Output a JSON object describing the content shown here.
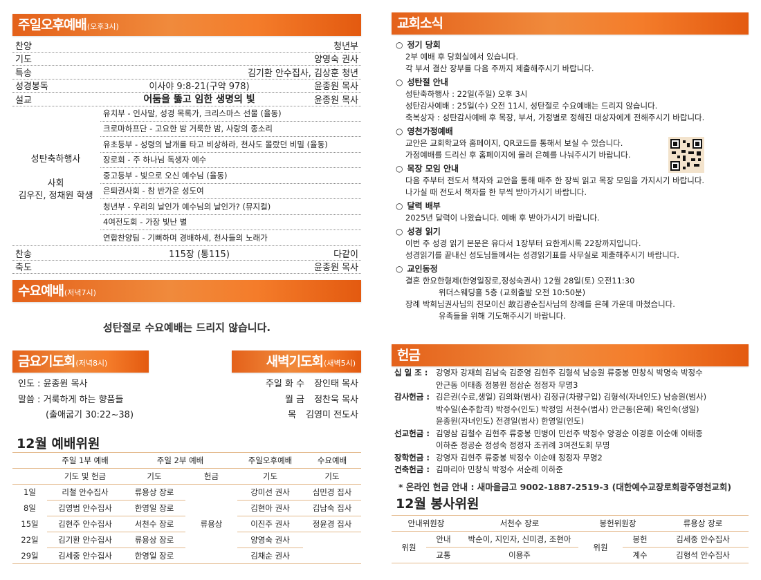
{
  "sunday_pm": {
    "title": "주일오후예배",
    "time": "(오후3시)",
    "rows": [
      {
        "label": "찬양",
        "center": "",
        "right": "청년부"
      },
      {
        "label": "기도",
        "center": "",
        "right": "양영숙 권사"
      },
      {
        "label": "특송",
        "center": "",
        "right": "김기환 안수집사, 김상훈 청년"
      },
      {
        "label": "성경봉독",
        "center": "이사야 9:8-21(구약 978)",
        "right": "윤종원 목사"
      },
      {
        "label": "설교",
        "center": "어둠을 뚫고 임한 생명의 빛",
        "right": "윤종원 목사"
      }
    ],
    "program": {
      "label": "성탄축하행사",
      "host_label": "사회",
      "host": "김우진, 정채원 학생",
      "items": [
        "유치부 - 인사말, 성경 목록가, 크리스마스 선물 (율동)",
        "크로마하프단 - 고요한 밤 거룩한 밤, 사랑의 종소리",
        "유초등부 - 성령의 날개를 타고 비상하라, 천사도 몰랐던 비밀 (율동)",
        "장로회 - 주 하나님 독생자 예수",
        "중고등부 - 빛으로 오신 예수님 (율동)",
        "은퇴권사회 - 참 반가운 성도여",
        "청년부 - 우리의 날인가 예수님의 날인가? (뮤지컬)",
        "4여전도회 - 가장 빛난 별",
        "연합찬양팀 - 기뻐하며 경배하세, 천사들의 노래가"
      ]
    },
    "closing_rows": [
      {
        "label": "찬송",
        "center": "115장 (통115)",
        "right": "다같이"
      },
      {
        "label": "축도",
        "center": "",
        "right": "윤종원 목사"
      }
    ]
  },
  "wednesday": {
    "title": "수요예배",
    "time": "(저녁7시)",
    "notice": "성탄절로 수요예배는 드리지 않습니다."
  },
  "friday": {
    "title": "금요기도회",
    "time": "(저녁8시)",
    "lines": [
      "인도 : 윤종원 목사",
      "말씀 : 거룩하게 하는 향품들",
      "(출애굽기 30:22~38)"
    ]
  },
  "dawn": {
    "title": "새벽기도회",
    "time": "(새벽5시)",
    "lines": [
      {
        "days": "주일 화 수",
        "name": "장인태 목사"
      },
      {
        "days": "월 금",
        "name": "정찬욱 목사"
      },
      {
        "days": "목",
        "name": "김영미 전도사"
      }
    ]
  },
  "worship_committee": {
    "title": "12월 예배위원",
    "groups": [
      "주일 1부 예배",
      "주일 2부 예배",
      "주일오후예배",
      "수요예배"
    ],
    "subheaders": [
      "기도 및 헌금",
      "기도",
      "헌금",
      "기도",
      "기도"
    ],
    "offering_person": "류용상",
    "rows": [
      {
        "date": "1일",
        "first": "리철 안수집사",
        "second": "류용상 장로",
        "pm": "강미선 권사",
        "wed": "심민경 집사"
      },
      {
        "date": "8일",
        "first": "김영범 안수집사",
        "second": "한영일 장로",
        "pm": "김현아 권사",
        "wed": "김남숙 집사"
      },
      {
        "date": "15일",
        "first": "김현주 안수집사",
        "second": "서천수 장로",
        "pm": "이진주 권사",
        "wed": "정윤경 집사"
      },
      {
        "date": "22일",
        "first": "김기환 안수집사",
        "second": "류용상 장로",
        "pm": "양영숙 권사",
        "wed": ""
      },
      {
        "date": "29일",
        "first": "김세중 안수집사",
        "second": "한영일 장로",
        "pm": "김채순 권사",
        "wed": ""
      }
    ]
  },
  "news": {
    "title": "교회소식",
    "bullet": "○",
    "qr_icon": "qr-code",
    "items": [
      {
        "heading": "정기 당회",
        "lines": [
          "2부 예배 후 당회실에서 있습니다.",
          "각 부서 결산 장부를 다음 주까지 제출해주시기 바랍니다."
        ]
      },
      {
        "heading": "성탄절 안내",
        "lines": [
          "성탄축하행사 : 22일(주일) 오후 3시",
          "성탄감사예배 : 25일(수) 오전 11시, 성탄절로 수요예배는 드리지 않습니다.",
          "축복상자 : 성탄감사예배 후 목장, 부서, 가정별로 정해진 대상자에게 전해주시기 바랍니다."
        ]
      },
      {
        "heading": "영천가정예배",
        "lines": [
          "교안은 교회학교와 홈페이지, QR코드를 통해서 보실 수 있습니다.",
          "가정예배를 드리신 후 홈페이지에 올려 은혜를 나눠주시기 바랍니다."
        ]
      },
      {
        "heading": "목장 모임 안내",
        "lines": [
          "다음 주부터 전도서 책자와 교안을 통해 매주 한 장씩 읽고 목장 모임을 가지시기 바랍니다.",
          "나가실 때 전도서 책자를 한 부씩 받아가시기 바랍니다."
        ]
      },
      {
        "heading": "달력 배부",
        "lines": [
          "2025년 달력이 나왔습니다. 예배 후 받아가시기 바랍니다."
        ]
      },
      {
        "heading": "성경 읽기",
        "lines": [
          "이번 주 성경 읽기 본문은 유다서 1장부터 요한계시록 22장까지입니다.",
          "성경읽기를 끝내신 성도님들께서는 성경읽기표를 사무실로 제출해주시기 바랍니다."
        ]
      },
      {
        "heading": "교인동정",
        "lines": [
          {
            "text": "결혼 한요한형제(한영일장로,정성숙권사) 12월 28일(토) 오전11:30",
            "cont": "위더스웨딩홀 5층 (교회출발 오전 10:50분)"
          },
          {
            "text": "장례 박희님권사님의 친모이신 故김광순집사님의 장례를 은혜 가운데 마쳤습니다.",
            "cont": "유족들을 위해 기도해주시기 바랍니다."
          }
        ]
      }
    ]
  },
  "offering": {
    "title": "헌금",
    "categories": [
      {
        "label": "십 일 조 :",
        "lines": [
          "강영자 강재희 김남숙 김준영 김현주 김형석 남승원 류중봉 민창식 박명숙 박정수",
          "안근동 이태종 정봉원 정삼순 정정자 무명3"
        ]
      },
      {
        "label": "감사헌금 :",
        "lines": [
          "김은권(수료,생일) 김의화(범사) 김정규(차량구입) 김형석(자녀인도) 남승원(범사)",
          "박수일(손주합격) 박정수(인도) 박정임 서천수(범사) 안근동(은혜) 육인숙(생일)",
          "윤종원(자녀인도) 전경일(범사) 한영일(인도)"
        ]
      },
      {
        "label": "선교헌금 :",
        "lines": [
          "김영삼 김철수 김현주 류중봉 민병이 민선주 박정수 양경순 이경훈 이순애 이태종",
          "이하준 정공순 정성숙 정정자 조귀례 3여전도회 무명"
        ]
      },
      {
        "label": "장학헌금 :",
        "lines": [
          "강영자 김현주 류중봉 박정수 이순애 정정자 무명2"
        ]
      },
      {
        "label": "건축헌금 :",
        "lines": [
          "김마리아 민창식 박정수 서순례 이하준"
        ]
      }
    ],
    "online": "* 온라인 헌금 안내 : 새마을금고 9002-1887-2519-3 (대한예수교장로회광주영천교회)"
  },
  "service_committee": {
    "title": "12월 봉사위원",
    "guide_chair_label": "안내위원장",
    "guide_chair": "서천수 장로",
    "offer_chair_label": "봉헌위원장",
    "offer_chair": "류용상 장로",
    "member_label": "위원",
    "guide": {
      "label": "안내",
      "value": "박순이, 지인자, 신미경, 조현아"
    },
    "traffic": {
      "label": "교통",
      "value": "이용주"
    },
    "offer": {
      "label": "봉헌",
      "value": "김세중 안수집사"
    },
    "count": {
      "label": "계수",
      "value": "김형석 안수집사"
    }
  },
  "colors": {
    "header_orange": "#ec6e22",
    "table_line": "#e3b88a"
  }
}
